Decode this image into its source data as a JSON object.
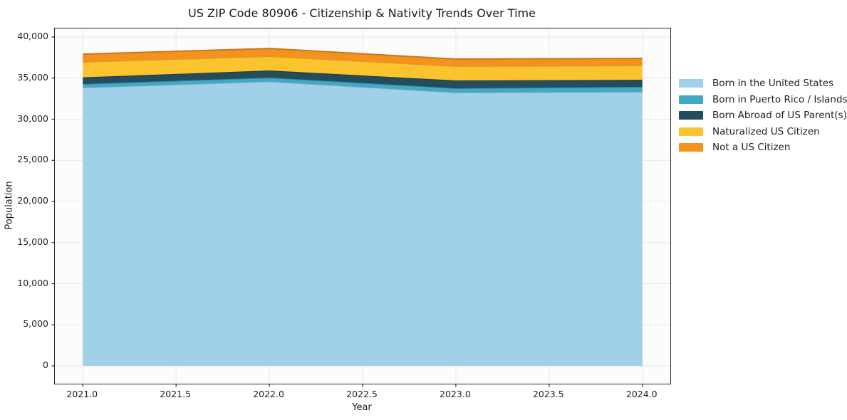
{
  "chart_data": {
    "type": "area",
    "stacked": true,
    "title": "US ZIP Code 80906 - Citizenship & Nativity Trends Over Time",
    "xlabel": "Year",
    "ylabel": "Population",
    "x": [
      2021,
      2022,
      2023,
      2024
    ],
    "series": [
      {
        "name": "Born in the United States",
        "color": "#A1D1E8",
        "values": [
          33850,
          34590,
          33250,
          33330
        ]
      },
      {
        "name": "Born in Puerto Rico / Islands",
        "color": "#41A8C6",
        "values": [
          440,
          470,
          520,
          610
        ]
      },
      {
        "name": "Born Abroad of US Parent(s)",
        "color": "#234C5D",
        "values": [
          810,
          870,
          950,
          860
        ]
      },
      {
        "name": "Naturalized US Citizen",
        "color": "#FBC42E",
        "values": [
          1870,
          1730,
          1730,
          1740
        ]
      },
      {
        "name": "Not a US Citizen",
        "color": "#F5921E",
        "values": [
          950,
          950,
          870,
          860
        ]
      }
    ],
    "stack_totals": [
      37920,
      38610,
      37320,
      37400
    ],
    "xlim": [
      2020.85,
      2024.15
    ],
    "ylim": [
      -2160,
      41040
    ],
    "x_ticks": {
      "values": [
        2021,
        2021.5,
        2022,
        2022.5,
        2023,
        2023.5,
        2024
      ],
      "labels": [
        "2021.0",
        "2021.5",
        "2022.0",
        "2022.5",
        "2023.0",
        "2023.5",
        "2024.0"
      ]
    },
    "y_ticks": {
      "values": [
        0,
        5000,
        10000,
        15000,
        20000,
        25000,
        30000,
        35000,
        40000
      ],
      "labels": [
        "0",
        "5,000",
        "10,000",
        "15,000",
        "20,000",
        "25,000",
        "30,000",
        "35,000",
        "40,000"
      ]
    },
    "grid": true,
    "legend_position": "right",
    "colors": {
      "grid": "#e8e8eb",
      "spine": "#2b2b2b",
      "tick": "#2b2b2b"
    }
  }
}
